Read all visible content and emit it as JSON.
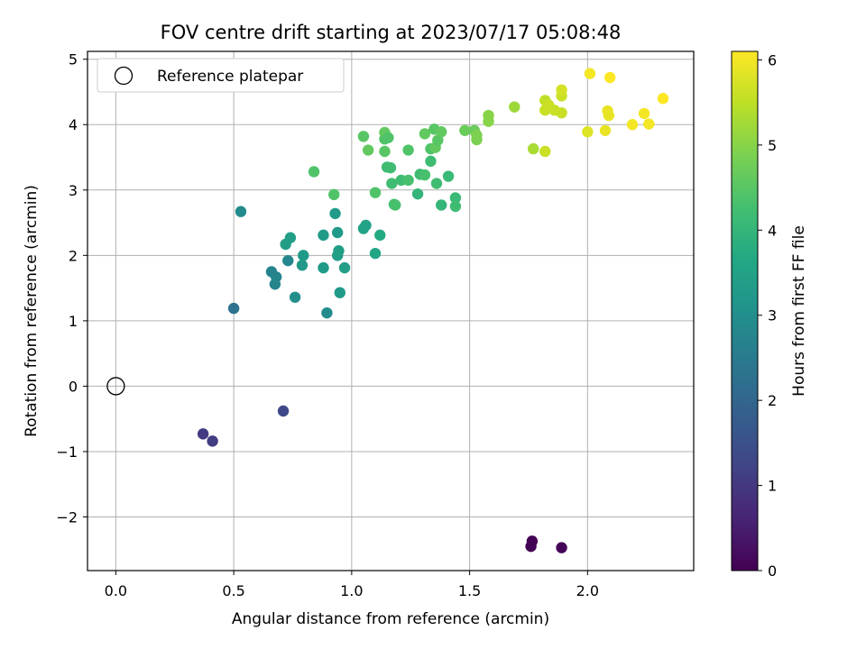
{
  "chart_data": {
    "type": "scatter",
    "title": "FOV centre drift starting at 2023/07/17 05:08:48",
    "xlabel": "Angular distance from reference (arcmin)",
    "ylabel": "Rotation from reference (arcmin)",
    "colorbar_label": "Hours from first FF file",
    "xlim": [
      -0.12,
      2.45
    ],
    "ylim": [
      -2.82,
      5.12
    ],
    "clim": [
      0,
      6.1
    ],
    "x_ticks": [
      0.0,
      0.5,
      1.0,
      1.5,
      2.0
    ],
    "x_tick_labels": [
      "0.0",
      "0.5",
      "1.0",
      "1.5",
      "2.0"
    ],
    "y_ticks": [
      -2,
      -1,
      0,
      1,
      2,
      3,
      4,
      5
    ],
    "y_tick_labels": [
      "−2",
      "−1",
      "0",
      "1",
      "2",
      "3",
      "4",
      "5"
    ],
    "colorbar_ticks": [
      0,
      1,
      2,
      3,
      4,
      5,
      6
    ],
    "colorbar_tick_labels": [
      "0",
      "1",
      "2",
      "3",
      "4",
      "5",
      "6"
    ],
    "colormap": "viridis",
    "grid": true,
    "legend": {
      "placement": "top-left",
      "entries": [
        "Reference platepar"
      ]
    },
    "reference_point": {
      "x": 0.0,
      "y": 0.0,
      "label": "Reference platepar"
    },
    "points": [
      {
        "x": 1.76,
        "y": -2.45,
        "t": 0.0
      },
      {
        "x": 1.765,
        "y": -2.37,
        "t": 0.02
      },
      {
        "x": 1.89,
        "y": -2.47,
        "t": 0.05
      },
      {
        "x": 0.37,
        "y": -0.73,
        "t": 1.05
      },
      {
        "x": 0.41,
        "y": -0.84,
        "t": 1.1
      },
      {
        "x": 0.71,
        "y": -0.38,
        "t": 1.3
      },
      {
        "x": 0.5,
        "y": 1.19,
        "t": 2.3
      },
      {
        "x": 0.53,
        "y": 2.67,
        "t": 2.9
      },
      {
        "x": 0.66,
        "y": 1.75,
        "t": 2.7
      },
      {
        "x": 0.68,
        "y": 1.67,
        "t": 2.75
      },
      {
        "x": 0.675,
        "y": 1.56,
        "t": 2.75
      },
      {
        "x": 0.73,
        "y": 1.92,
        "t": 2.8
      },
      {
        "x": 0.72,
        "y": 2.17,
        "t": 3.4
      },
      {
        "x": 0.74,
        "y": 2.27,
        "t": 3.4
      },
      {
        "x": 0.76,
        "y": 1.36,
        "t": 3.0
      },
      {
        "x": 0.79,
        "y": 1.85,
        "t": 3.3
      },
      {
        "x": 0.795,
        "y": 2.0,
        "t": 3.3
      },
      {
        "x": 0.88,
        "y": 2.31,
        "t": 3.3
      },
      {
        "x": 0.88,
        "y": 1.81,
        "t": 3.3
      },
      {
        "x": 0.895,
        "y": 1.12,
        "t": 2.9
      },
      {
        "x": 0.93,
        "y": 2.64,
        "t": 3.3
      },
      {
        "x": 0.94,
        "y": 2.35,
        "t": 3.3
      },
      {
        "x": 0.94,
        "y": 2.0,
        "t": 3.4
      },
      {
        "x": 0.945,
        "y": 2.07,
        "t": 3.4
      },
      {
        "x": 0.95,
        "y": 1.43,
        "t": 3.3
      },
      {
        "x": 0.97,
        "y": 1.81,
        "t": 3.4
      },
      {
        "x": 0.84,
        "y": 3.28,
        "t": 4.4
      },
      {
        "x": 0.925,
        "y": 2.93,
        "t": 4.4
      },
      {
        "x": 1.05,
        "y": 2.41,
        "t": 3.5
      },
      {
        "x": 1.06,
        "y": 2.46,
        "t": 3.5
      },
      {
        "x": 1.1,
        "y": 2.03,
        "t": 3.6
      },
      {
        "x": 1.12,
        "y": 2.31,
        "t": 3.7
      },
      {
        "x": 1.05,
        "y": 3.82,
        "t": 4.5
      },
      {
        "x": 1.07,
        "y": 3.61,
        "t": 4.6
      },
      {
        "x": 1.1,
        "y": 2.96,
        "t": 4.4
      },
      {
        "x": 1.14,
        "y": 3.78,
        "t": 4.4
      },
      {
        "x": 1.14,
        "y": 3.88,
        "t": 4.6
      },
      {
        "x": 1.14,
        "y": 3.59,
        "t": 4.5
      },
      {
        "x": 1.155,
        "y": 3.8,
        "t": 4.4
      },
      {
        "x": 1.15,
        "y": 3.35,
        "t": 4.2
      },
      {
        "x": 1.165,
        "y": 3.34,
        "t": 4.2
      },
      {
        "x": 1.17,
        "y": 3.1,
        "t": 4.2
      },
      {
        "x": 1.18,
        "y": 2.78,
        "t": 4.3
      },
      {
        "x": 1.185,
        "y": 2.77,
        "t": 4.3
      },
      {
        "x": 1.21,
        "y": 3.15,
        "t": 4.2
      },
      {
        "x": 1.24,
        "y": 3.15,
        "t": 4.3
      },
      {
        "x": 1.24,
        "y": 3.61,
        "t": 4.4
      },
      {
        "x": 1.28,
        "y": 2.94,
        "t": 4.0
      },
      {
        "x": 1.29,
        "y": 3.24,
        "t": 4.2
      },
      {
        "x": 1.31,
        "y": 3.23,
        "t": 4.3
      },
      {
        "x": 1.31,
        "y": 3.86,
        "t": 4.6
      },
      {
        "x": 1.335,
        "y": 3.63,
        "t": 4.4
      },
      {
        "x": 1.335,
        "y": 3.44,
        "t": 4.2
      },
      {
        "x": 1.35,
        "y": 3.93,
        "t": 4.5
      },
      {
        "x": 1.355,
        "y": 3.65,
        "t": 4.6
      },
      {
        "x": 1.36,
        "y": 3.1,
        "t": 4.2
      },
      {
        "x": 1.365,
        "y": 3.76,
        "t": 4.5
      },
      {
        "x": 1.38,
        "y": 3.89,
        "t": 4.6
      },
      {
        "x": 1.38,
        "y": 2.77,
        "t": 4.0
      },
      {
        "x": 1.41,
        "y": 3.21,
        "t": 4.1
      },
      {
        "x": 1.44,
        "y": 2.88,
        "t": 4.1
      },
      {
        "x": 1.44,
        "y": 2.75,
        "t": 4.2
      },
      {
        "x": 1.48,
        "y": 3.91,
        "t": 4.7
      },
      {
        "x": 1.52,
        "y": 3.91,
        "t": 4.7
      },
      {
        "x": 1.53,
        "y": 3.77,
        "t": 4.9
      },
      {
        "x": 1.53,
        "y": 3.84,
        "t": 4.9
      },
      {
        "x": 1.58,
        "y": 4.05,
        "t": 5.0
      },
      {
        "x": 1.58,
        "y": 4.14,
        "t": 5.0
      },
      {
        "x": 1.69,
        "y": 4.27,
        "t": 5.2
      },
      {
        "x": 1.77,
        "y": 3.63,
        "t": 5.3
      },
      {
        "x": 1.82,
        "y": 3.59,
        "t": 5.6
      },
      {
        "x": 1.82,
        "y": 4.37,
        "t": 5.5
      },
      {
        "x": 1.82,
        "y": 4.22,
        "t": 5.6
      },
      {
        "x": 1.835,
        "y": 4.3,
        "t": 5.6
      },
      {
        "x": 1.86,
        "y": 4.22,
        "t": 5.6
      },
      {
        "x": 1.89,
        "y": 4.18,
        "t": 5.6
      },
      {
        "x": 1.89,
        "y": 4.44,
        "t": 5.6
      },
      {
        "x": 1.89,
        "y": 4.53,
        "t": 5.7
      },
      {
        "x": 2.0,
        "y": 3.89,
        "t": 5.8
      },
      {
        "x": 2.01,
        "y": 4.78,
        "t": 6.0
      },
      {
        "x": 2.075,
        "y": 3.91,
        "t": 5.9
      },
      {
        "x": 2.085,
        "y": 4.21,
        "t": 5.9
      },
      {
        "x": 2.09,
        "y": 4.14,
        "t": 5.9
      },
      {
        "x": 2.095,
        "y": 4.72,
        "t": 6.1
      },
      {
        "x": 2.19,
        "y": 4.0,
        "t": 6.0
      },
      {
        "x": 2.24,
        "y": 4.17,
        "t": 6.0
      },
      {
        "x": 2.26,
        "y": 4.01,
        "t": 6.0
      },
      {
        "x": 2.32,
        "y": 4.4,
        "t": 6.1
      }
    ]
  }
}
